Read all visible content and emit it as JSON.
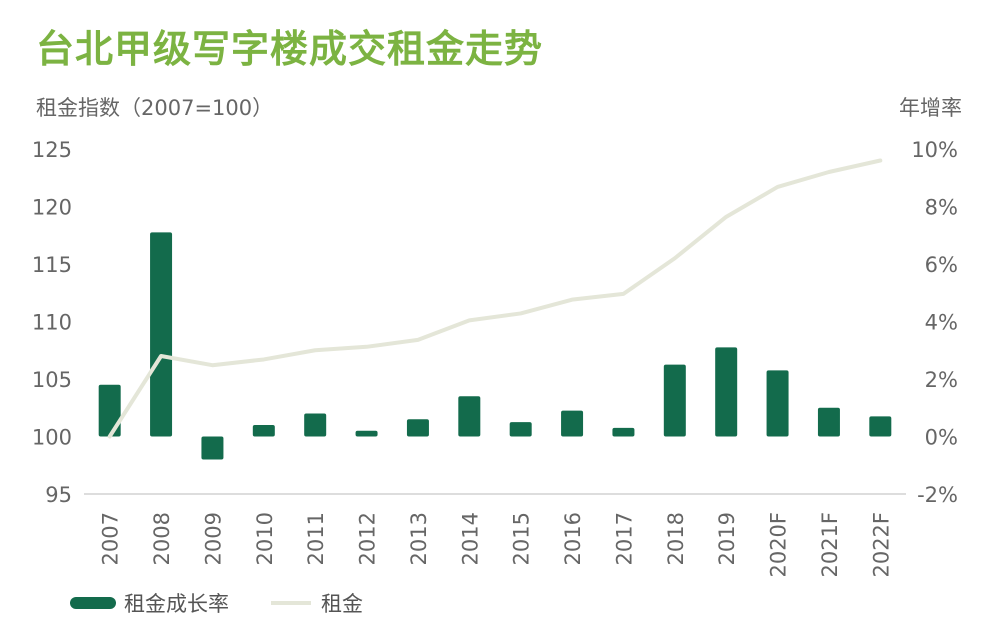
{
  "title": "台北甲级写字楼成交租金走势",
  "colors": {
    "title": "#7cb342",
    "bar": "#136b4c",
    "line": "#e4e6d8",
    "axis_text": "#666666"
  },
  "chart_data": {
    "type": "bar",
    "categories": [
      "2007",
      "2008",
      "2009",
      "2010",
      "2011",
      "2012",
      "2013",
      "2014",
      "2015",
      "2016",
      "2017",
      "2018",
      "2019",
      "2020F",
      "2021F",
      "2022F"
    ],
    "ylabel_left": "租金指数（2007=100）",
    "ylabel_right": "年增率",
    "ylim_left": [
      95,
      125
    ],
    "yticks_left": [
      "95",
      "100",
      "105",
      "110",
      "115",
      "120",
      "125"
    ],
    "ylim_right": [
      -2,
      10
    ],
    "yticks_right": [
      "-2%",
      "0%",
      "2%",
      "4%",
      "6%",
      "8%",
      "10%"
    ],
    "series": [
      {
        "name": "租金成长率",
        "type": "bar",
        "axis": "right",
        "values": [
          1.8,
          7.1,
          -0.8,
          0.4,
          0.8,
          0.2,
          0.6,
          1.4,
          0.5,
          0.9,
          0.3,
          2.5,
          3.1,
          2.3,
          1.0,
          0.7
        ]
      },
      {
        "name": "租金",
        "type": "line",
        "axis": "left",
        "values": [
          100.0,
          107.0,
          106.2,
          106.7,
          107.5,
          107.8,
          108.4,
          110.1,
          110.7,
          111.9,
          112.4,
          115.5,
          119.1,
          121.7,
          123.0,
          124.0
        ]
      }
    ],
    "grid": false,
    "legend": "bottom-left"
  }
}
